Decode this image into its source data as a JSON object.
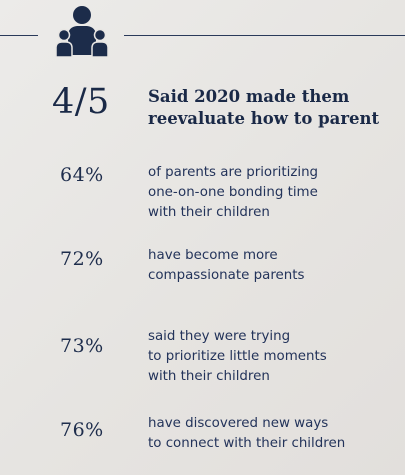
{
  "header": {
    "icon": "family-icon",
    "colors": {
      "ink": "#1c2c4a",
      "background": "#e8e6e3"
    }
  },
  "hero": {
    "number": "4/5",
    "text_line1": "Said 2020 made them",
    "text_line2": "reevaluate how to parent"
  },
  "stats": [
    {
      "number": "64%",
      "lines": [
        "of parents are prioritizing",
        "one-on-one bonding time",
        "with their children"
      ]
    },
    {
      "number": "72%",
      "lines": [
        "have become more",
        "compassionate parents"
      ]
    },
    {
      "number": "73%",
      "lines": [
        "said they were trying",
        "to prioritize little moments",
        "with their children"
      ]
    },
    {
      "number": "76%",
      "lines": [
        "have discovered new ways",
        "to connect with their children"
      ]
    }
  ]
}
